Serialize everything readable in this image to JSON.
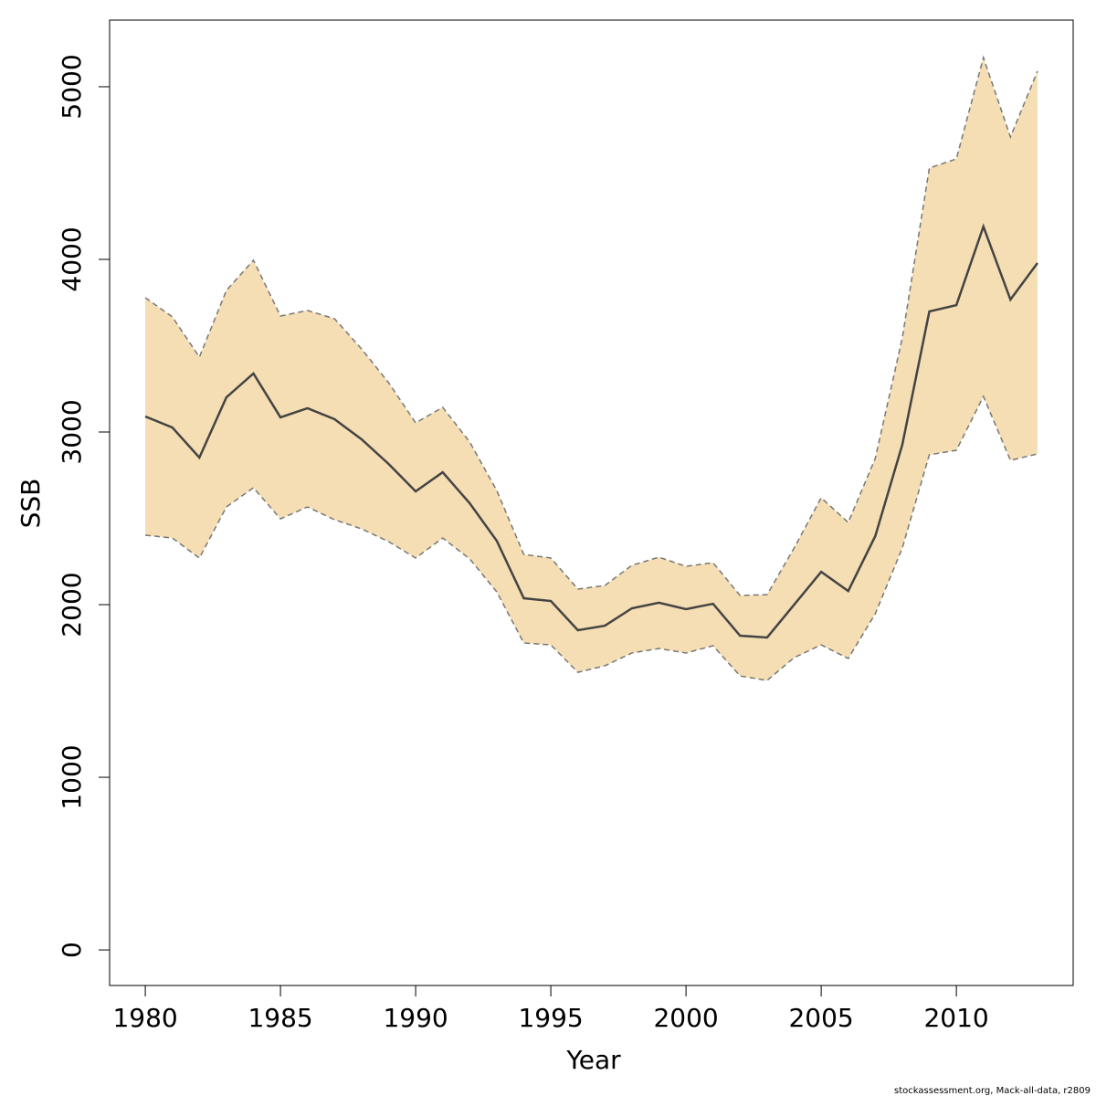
{
  "chart_data": {
    "type": "band-line",
    "x_label": "Year",
    "y_label": "SSB",
    "annotation": "stockassessment.org, Mack-all-data, r2809",
    "x": [
      1980,
      1981,
      1982,
      1983,
      1984,
      1985,
      1986,
      1987,
      1988,
      1989,
      1990,
      1991,
      1992,
      1993,
      1994,
      1995,
      1996,
      1997,
      1998,
      1999,
      2000,
      2001,
      2002,
      2003,
      2004,
      2005,
      2006,
      2007,
      2008,
      2009,
      2010,
      2011,
      2012,
      2013
    ],
    "values": [
      3090,
      3026,
      2852,
      3201,
      3339,
      3085,
      3138,
      3074,
      2958,
      2815,
      2656,
      2767,
      2587,
      2370,
      2037,
      2021,
      1852,
      1878,
      1979,
      2011,
      1974,
      2005,
      1820,
      1810,
      2000,
      2190,
      2079,
      2397,
      2926,
      3698,
      3735,
      4190,
      3767,
      3979
    ],
    "upper": [
      3778,
      3667,
      3434,
      3820,
      3995,
      3672,
      3704,
      3656,
      3481,
      3286,
      3053,
      3143,
      2942,
      2661,
      2291,
      2270,
      2090,
      2111,
      2228,
      2275,
      2222,
      2243,
      2053,
      2058,
      2328,
      2619,
      2476,
      2847,
      3545,
      4529,
      4582,
      5169,
      4709,
      5090
    ],
    "lower": [
      2402,
      2386,
      2270,
      2566,
      2677,
      2497,
      2566,
      2492,
      2439,
      2365,
      2270,
      2386,
      2265,
      2074,
      1778,
      1767,
      1608,
      1646,
      1720,
      1746,
      1720,
      1762,
      1587,
      1561,
      1693,
      1767,
      1688,
      1947,
      2328,
      2868,
      2894,
      3206,
      2836,
      2873
    ],
    "color": "#444444",
    "band_color": "#f5deb3",
    "band_line_color": "#777777",
    "xlim": [
      1978.68,
      2014.32
    ],
    "xticks": [
      1980,
      1985,
      1990,
      1995,
      2000,
      2005,
      2010
    ],
    "ylim": [
      -206,
      5386
    ],
    "yticks": [
      0,
      1000,
      2000,
      3000,
      4000,
      5000
    ]
  }
}
